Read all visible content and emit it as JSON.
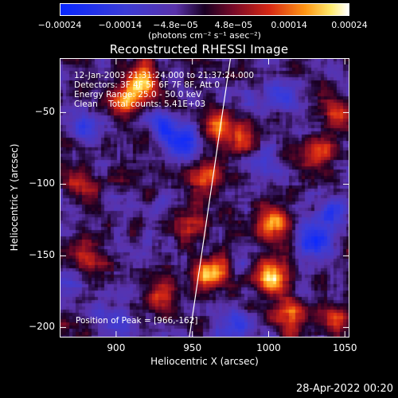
{
  "chart_data": {
    "type": "heatmap",
    "title": "Reconstructed RHESSI Image",
    "xlabel": "Heliocentric X (arcsec)",
    "ylabel": "Heliocentric Y (arcsec)",
    "xlim": [
      863,
      1053
    ],
    "ylim": [
      -207,
      -12
    ],
    "x_ticks": [
      900,
      950,
      1000,
      1050
    ],
    "x_tick_labels": [
      "900",
      "950",
      "1000",
      "1050"
    ],
    "y_ticks": [
      -50,
      -100,
      -150,
      -200
    ],
    "y_tick_labels": [
      "−50",
      "−100",
      "−150",
      "−200"
    ],
    "colorbar": {
      "range": [
        -0.00024,
        0.00024
      ],
      "tick_values": [
        -0.00024,
        -0.00014,
        -4.8e-05,
        4.8e-05,
        0.00014,
        0.00024
      ],
      "tick_labels": [
        "−0.00024",
        "−0.00014",
        "−4.8e−05",
        "4.8e−05",
        "0.00014",
        "0.00024"
      ],
      "units": "(photons cm⁻² s⁻¹ asec⁻²)"
    },
    "bright_sources": [
      {
        "x": 905,
        "y": -42,
        "level": 0.75
      },
      {
        "x": 917,
        "y": -28,
        "level": 0.85
      },
      {
        "x": 878,
        "y": -100,
        "level": 0.55
      },
      {
        "x": 958,
        "y": -95,
        "level": 0.75
      },
      {
        "x": 967,
        "y": -60,
        "level": 0.65
      },
      {
        "x": 985,
        "y": -70,
        "level": 0.6
      },
      {
        "x": 1003,
        "y": -128,
        "level": 0.85
      },
      {
        "x": 1033,
        "y": -80,
        "level": 0.55
      },
      {
        "x": 1045,
        "y": -50,
        "level": 0.6
      },
      {
        "x": 962,
        "y": -163,
        "level": 0.95
      },
      {
        "x": 1003,
        "y": -165,
        "level": 0.95
      },
      {
        "x": 1015,
        "y": -190,
        "level": 0.7
      },
      {
        "x": 880,
        "y": -150,
        "level": 0.55
      },
      {
        "x": 930,
        "y": -178,
        "level": 0.55
      },
      {
        "x": 950,
        "y": -128,
        "level": 0.5
      },
      {
        "x": 1045,
        "y": -195,
        "level": 0.55
      }
    ],
    "dark_regions": [
      {
        "x": 945,
        "y": -70,
        "level": -0.7
      },
      {
        "x": 930,
        "y": -60,
        "level": -0.5
      },
      {
        "x": 880,
        "y": -60,
        "level": -0.45
      },
      {
        "x": 1030,
        "y": -140,
        "level": -0.75
      },
      {
        "x": 1040,
        "y": -120,
        "level": -0.5
      },
      {
        "x": 995,
        "y": -80,
        "level": -0.5
      },
      {
        "x": 980,
        "y": -200,
        "level": -0.6
      },
      {
        "x": 900,
        "y": -195,
        "level": -0.45
      },
      {
        "x": 1010,
        "y": -40,
        "level": -0.4
      }
    ],
    "limb_line": [
      {
        "x": 975,
        "y": -12
      },
      {
        "x": 948,
        "y": -207
      }
    ],
    "grid": false
  },
  "annotations": {
    "time_range": "12-Jan-2003 21:31:24.000 to 21:37:24.000",
    "detectors": "Detectors: 3F 4F 5F 6F 7F 8F, Att 0",
    "energy_range": "Energy Range: 25.0 - 50.0 keV",
    "clean_counts": "Clean    Total counts: 5.41E+03",
    "peak_position": "Position of Peak = [966,-162]"
  },
  "timestamp": "28-Apr-2022 00:20",
  "colors": {
    "background": "#000000",
    "text": "#ffffff"
  }
}
